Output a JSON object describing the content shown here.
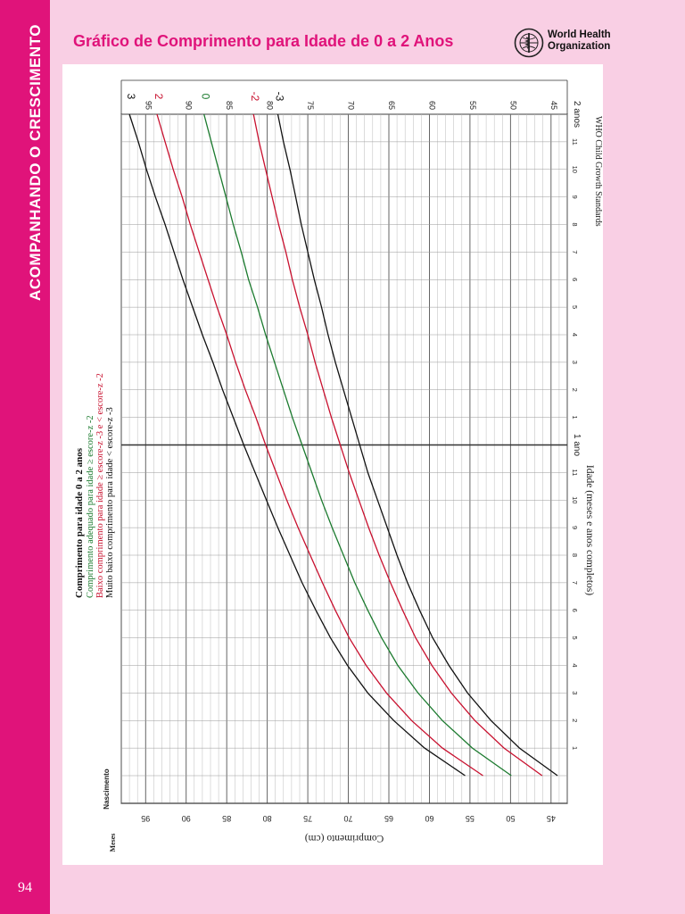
{
  "sidebar": {
    "section_title": "ACOMPANHANDO O CRESCIMENTO",
    "page_number": "94"
  },
  "header": {
    "title": "Gráfico de Comprimento para Idade de 0 a 2 Anos",
    "org_line1": "World Health",
    "org_line2": "Organization",
    "logo": "who-emblem-icon"
  },
  "chart_data": {
    "type": "line",
    "standard_label": "WHO Child Growth Standards",
    "legend": {
      "title": "Comprimento para idade 0 a 2 anos",
      "entries": [
        {
          "label": "Comprimento adequado para idade ≥ escore-z -2",
          "color": "#1b7a2e"
        },
        {
          "label": "Baixo comprimento para idade ≥ escore-z -3 e < escore-z -2",
          "color": "#c8102e"
        },
        {
          "label": "Muito baixo comprimento para idade < escore-z -3",
          "color": "#111111"
        }
      ]
    },
    "xlabel": "Idade (meses e anos completos)",
    "ylabel": "Comprimento (cm)",
    "x_axis_title_left": "Meses",
    "xlim": [
      0,
      24
    ],
    "ylim": [
      43,
      98
    ],
    "y_ticks": [
      45,
      50,
      55,
      60,
      65,
      70,
      75,
      80,
      85,
      90,
      95
    ],
    "x_tick_labels": [
      {
        "month": 0,
        "label": "Nascimento"
      },
      {
        "month": 1,
        "label": "1"
      },
      {
        "month": 2,
        "label": "2"
      },
      {
        "month": 3,
        "label": "3"
      },
      {
        "month": 4,
        "label": "4"
      },
      {
        "month": 5,
        "label": "5"
      },
      {
        "month": 6,
        "label": "6"
      },
      {
        "month": 7,
        "label": "7"
      },
      {
        "month": 8,
        "label": "8"
      },
      {
        "month": 9,
        "label": "9"
      },
      {
        "month": 10,
        "label": "10"
      },
      {
        "month": 11,
        "label": "11"
      },
      {
        "month": 12,
        "label": "1 ano"
      },
      {
        "month": 13,
        "label": "1"
      },
      {
        "month": 14,
        "label": "2"
      },
      {
        "month": 15,
        "label": "3"
      },
      {
        "month": 16,
        "label": "4"
      },
      {
        "month": 17,
        "label": "5"
      },
      {
        "month": 18,
        "label": "6"
      },
      {
        "month": 19,
        "label": "7"
      },
      {
        "month": 20,
        "label": "8"
      },
      {
        "month": 21,
        "label": "9"
      },
      {
        "month": 22,
        "label": "10"
      },
      {
        "month": 23,
        "label": "11"
      },
      {
        "month": 24,
        "label": "2 anos"
      }
    ],
    "x": [
      0,
      1,
      2,
      3,
      4,
      5,
      6,
      7,
      8,
      9,
      10,
      11,
      12,
      13,
      14,
      15,
      16,
      17,
      18,
      19,
      20,
      21,
      22,
      23,
      24
    ],
    "series": [
      {
        "name": "3",
        "color": "#111111",
        "values": [
          55.6,
          60.6,
          64.4,
          67.6,
          70.1,
          72.2,
          74.0,
          75.7,
          77.2,
          78.7,
          80.1,
          81.5,
          82.9,
          84.2,
          85.5,
          86.7,
          88.0,
          89.2,
          90.4,
          91.5,
          92.6,
          93.8,
          94.9,
          95.9,
          97.0
        ]
      },
      {
        "name": "2",
        "color": "#c8102e",
        "values": [
          53.4,
          58.4,
          62.2,
          65.3,
          67.8,
          69.9,
          71.6,
          73.2,
          74.7,
          76.2,
          77.6,
          78.9,
          80.2,
          81.4,
          82.7,
          83.9,
          85.0,
          86.2,
          87.3,
          88.4,
          89.5,
          90.5,
          91.6,
          92.6,
          93.6
        ]
      },
      {
        "name": "0",
        "color": "#1b7a2e",
        "values": [
          49.9,
          54.7,
          58.4,
          61.4,
          63.9,
          65.9,
          67.6,
          69.2,
          70.6,
          72.0,
          73.3,
          74.5,
          75.7,
          76.9,
          78.0,
          79.1,
          80.2,
          81.2,
          82.3,
          83.2,
          84.2,
          85.1,
          86.0,
          86.9,
          87.8
        ]
      },
      {
        "name": "-2",
        "color": "#c8102e",
        "values": [
          46.1,
          50.8,
          54.4,
          57.3,
          59.7,
          61.7,
          63.3,
          64.8,
          66.2,
          67.5,
          68.7,
          69.9,
          71.0,
          72.1,
          73.1,
          74.1,
          75.0,
          76.0,
          76.9,
          77.7,
          78.6,
          79.4,
          80.2,
          81.0,
          81.7
        ]
      },
      {
        "name": "-3",
        "color": "#111111",
        "values": [
          44.2,
          48.9,
          52.4,
          55.3,
          57.6,
          59.6,
          61.2,
          62.7,
          64.0,
          65.2,
          66.4,
          67.6,
          68.6,
          69.6,
          70.6,
          71.6,
          72.5,
          73.3,
          74.2,
          75.0,
          75.8,
          76.5,
          77.2,
          78.0,
          78.7
        ]
      }
    ]
  }
}
